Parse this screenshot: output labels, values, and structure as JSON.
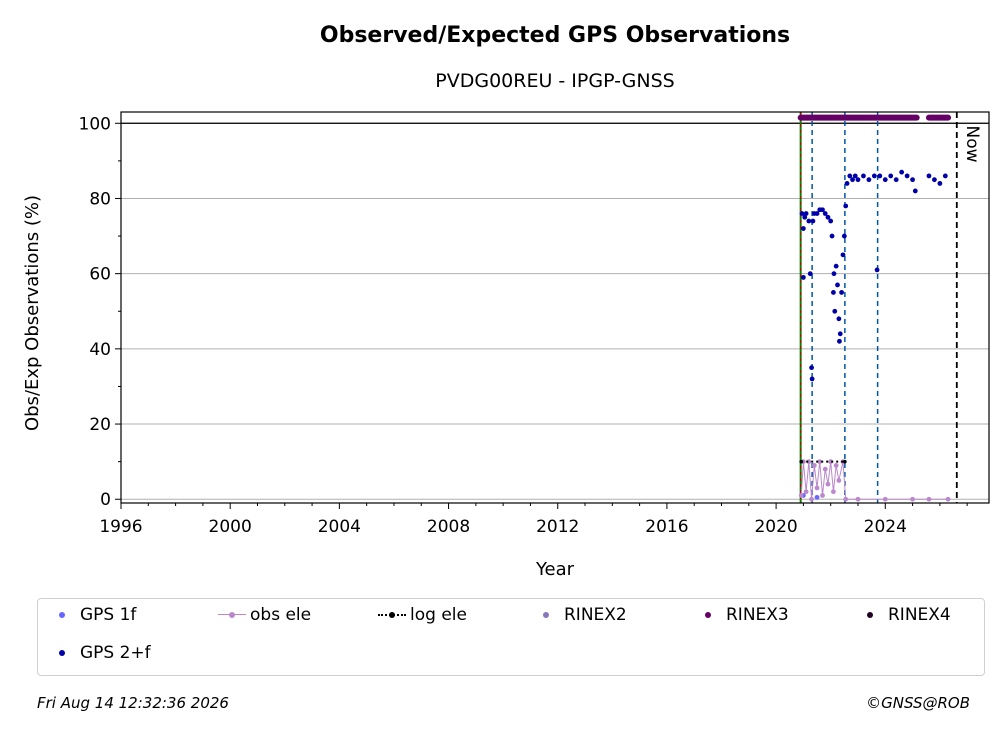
{
  "chart_data": {
    "type": "scatter",
    "title": "Observed/Expected GPS Observations",
    "subtitle": "PVDG00REU - IPGP-GNSS",
    "xlabel": "Year",
    "ylabel": "Obs/Exp Observations (%)",
    "xlim": [
      1996,
      2027.8
    ],
    "ylim": [
      -1,
      103
    ],
    "xticks": [
      "1996",
      "2000",
      "2004",
      "2008",
      "2012",
      "2016",
      "2020",
      "2024"
    ],
    "yticks": [
      "0",
      "20",
      "40",
      "60",
      "80",
      "100"
    ],
    "grid": "horizontal",
    "reference_line_y": 100,
    "now_label": "Now",
    "now_x": 2026.62,
    "first_obs_x": 2020.9,
    "event_lines_x": [
      2021.32,
      2022.52,
      2023.72
    ],
    "series": [
      {
        "name": "GPS 1f",
        "color": "#6666ff",
        "marker": "dot",
        "points": [
          [
            2021.0,
            1
          ],
          [
            2021.5,
            0.5
          ]
        ]
      },
      {
        "name": "obs ele",
        "color": "#bb88cc",
        "marker": "line-dot",
        "points": [
          [
            2020.92,
            1
          ],
          [
            2021.0,
            10
          ],
          [
            2021.1,
            2
          ],
          [
            2021.2,
            10
          ],
          [
            2021.3,
            0
          ],
          [
            2021.4,
            9
          ],
          [
            2021.5,
            3
          ],
          [
            2021.6,
            10
          ],
          [
            2021.7,
            1
          ],
          [
            2021.8,
            8
          ],
          [
            2021.9,
            4
          ],
          [
            2022.0,
            10
          ],
          [
            2022.1,
            2
          ],
          [
            2022.2,
            9
          ],
          [
            2022.3,
            5
          ],
          [
            2022.45,
            10
          ],
          [
            2022.55,
            0
          ],
          [
            2023.0,
            0
          ],
          [
            2024.0,
            0
          ],
          [
            2025.0,
            0
          ],
          [
            2025.6,
            0
          ],
          [
            2026.3,
            0
          ]
        ]
      },
      {
        "name": "log ele",
        "color": "#000000",
        "marker": "dotted-line",
        "points": [
          [
            2020.92,
            10
          ],
          [
            2022.52,
            10
          ]
        ]
      },
      {
        "name": "RINEX2",
        "color": "#8877bb",
        "marker": "dot",
        "points": []
      },
      {
        "name": "RINEX3",
        "color": "#660066",
        "marker": "dot",
        "segments": [
          [
            2020.9,
            2025.15
          ],
          [
            2025.6,
            2026.3
          ]
        ],
        "y": 101.5
      },
      {
        "name": "RINEX4",
        "color": "#220022",
        "marker": "dot",
        "points": []
      },
      {
        "name": "GPS 2+f",
        "color": "#0000aa",
        "marker": "dot",
        "points": [
          [
            2020.95,
            76
          ],
          [
            2021.0,
            72
          ],
          [
            2021.0,
            59
          ],
          [
            2021.05,
            75
          ],
          [
            2021.1,
            76
          ],
          [
            2021.2,
            74
          ],
          [
            2021.25,
            60
          ],
          [
            2021.3,
            35
          ],
          [
            2021.32,
            32
          ],
          [
            2021.35,
            74
          ],
          [
            2021.4,
            76
          ],
          [
            2021.5,
            76
          ],
          [
            2021.6,
            77
          ],
          [
            2021.7,
            77
          ],
          [
            2021.8,
            76
          ],
          [
            2021.9,
            75
          ],
          [
            2022.0,
            74
          ],
          [
            2022.05,
            70
          ],
          [
            2022.1,
            55
          ],
          [
            2022.12,
            60
          ],
          [
            2022.15,
            50
          ],
          [
            2022.2,
            62
          ],
          [
            2022.25,
            57
          ],
          [
            2022.3,
            48
          ],
          [
            2022.32,
            42
          ],
          [
            2022.35,
            44
          ],
          [
            2022.4,
            55
          ],
          [
            2022.45,
            65
          ],
          [
            2022.5,
            70
          ],
          [
            2022.55,
            78
          ],
          [
            2022.6,
            84
          ],
          [
            2022.7,
            86
          ],
          [
            2022.8,
            85
          ],
          [
            2022.9,
            86
          ],
          [
            2023.0,
            85
          ],
          [
            2023.2,
            86
          ],
          [
            2023.4,
            85
          ],
          [
            2023.6,
            86
          ],
          [
            2023.7,
            61
          ],
          [
            2023.8,
            86
          ],
          [
            2024.0,
            85
          ],
          [
            2024.2,
            86
          ],
          [
            2024.4,
            85
          ],
          [
            2024.6,
            87
          ],
          [
            2024.8,
            86
          ],
          [
            2025.0,
            85
          ],
          [
            2025.1,
            82
          ],
          [
            2025.6,
            86
          ],
          [
            2025.8,
            85
          ],
          [
            2026.0,
            84
          ],
          [
            2026.2,
            86
          ]
        ]
      }
    ],
    "legend_position": "bottom"
  },
  "footer": {
    "timestamp": "Fri Aug 14 12:32:36 2026",
    "copyright": "©GNSS@ROB"
  }
}
